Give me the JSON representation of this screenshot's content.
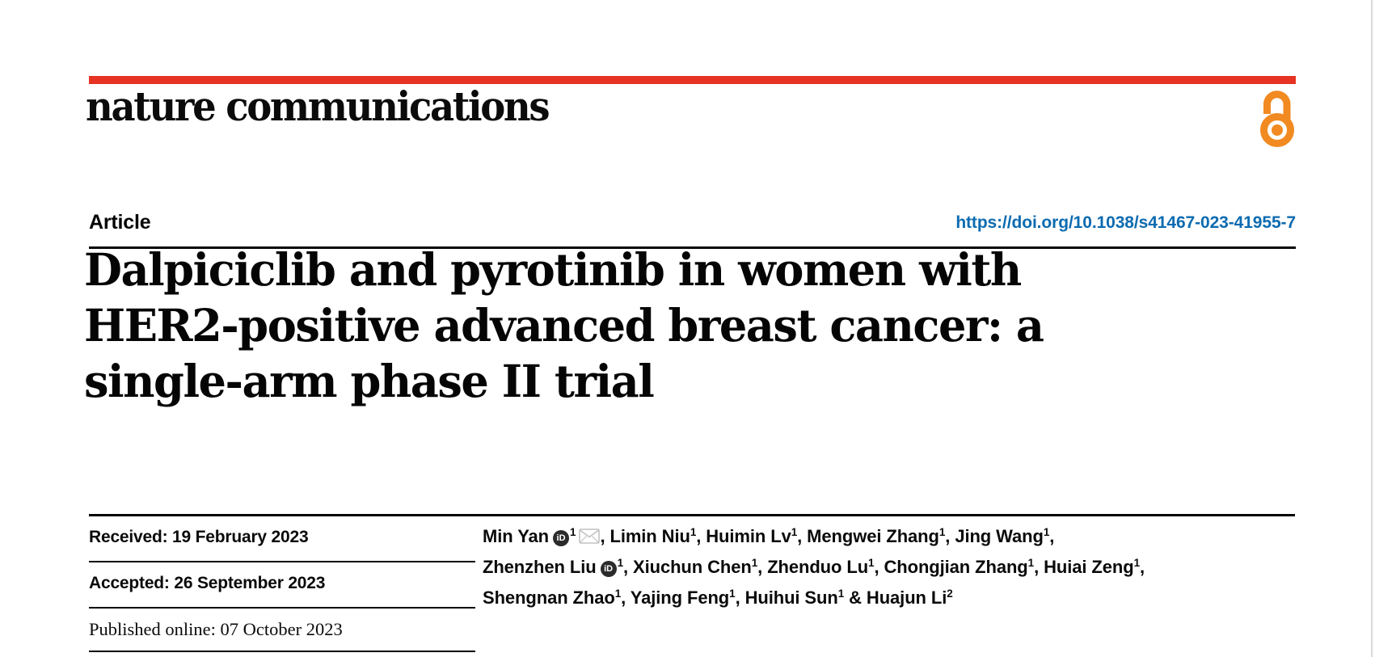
{
  "page": {
    "journal_wordmark": "nature communications",
    "accent_red": "#e63323",
    "open_access_orange": "#f18a21",
    "link_blue": "#0c6bb0"
  },
  "header": {
    "article_label": "Article",
    "doi": "https://doi.org/10.1038/s41467-023-41955-7"
  },
  "title": {
    "lines": [
      "Dalpiciclib and pyrotinib in women with",
      "HER2-positive advanced breast cancer: a",
      "single-arm phase II trial"
    ]
  },
  "dates": [
    {
      "label": "Received:",
      "value": "19 February 2023"
    },
    {
      "label": "Accepted:",
      "value": "26 September 2023"
    },
    {
      "label": "Published online:",
      "value": "07 October 2023"
    }
  ],
  "authors": {
    "orcid_icon_label": "iD",
    "lines": [
      [
        {
          "name": "Min Yan",
          "orcid": true,
          "sup": "1",
          "email": true,
          "sep": ", "
        },
        {
          "name": "Limin Niu",
          "sup": "1",
          "sep": ", "
        },
        {
          "name": "Huimin Lv",
          "sup": "1",
          "sep": ", "
        },
        {
          "name": "Mengwei Zhang",
          "sup": "1",
          "sep": ", "
        },
        {
          "name": "Jing Wang",
          "sup": "1",
          "sep": ","
        }
      ],
      [
        {
          "name": "Zhenzhen Liu",
          "orcid": true,
          "sup": "1",
          "sep": ", "
        },
        {
          "name": "Xiuchun Chen",
          "sup": "1",
          "sep": ", "
        },
        {
          "name": "Zhenduo Lu",
          "sup": "1",
          "sep": ", "
        },
        {
          "name": "Chongjian Zhang",
          "sup": "1",
          "sep": ", "
        },
        {
          "name": "Huiai Zeng",
          "sup": "1",
          "sep": ","
        }
      ],
      [
        {
          "name": "Shengnan Zhao",
          "sup": "1",
          "sep": ", "
        },
        {
          "name": "Yajing Feng",
          "sup": "1",
          "sep": ", "
        },
        {
          "name": "Huihui Sun",
          "sup": "1",
          "sep": " & "
        },
        {
          "name": "Huajun Li",
          "sup": "2",
          "sep": ""
        }
      ]
    ]
  }
}
